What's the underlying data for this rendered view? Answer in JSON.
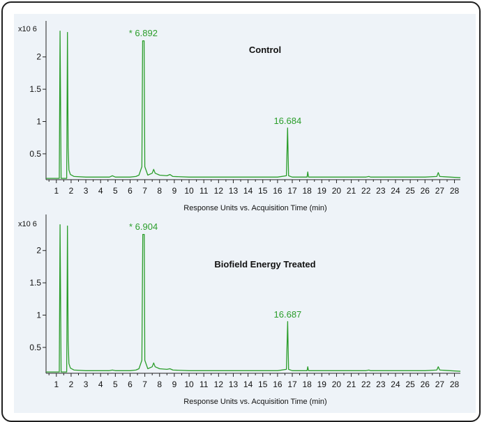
{
  "chart_data": [
    {
      "type": "line",
      "title": "Control",
      "xlabel": "Response Units vs. Acquisition Time (min)",
      "scale_label": "x10 6",
      "xlim": [
        0.3,
        28.4
      ],
      "ylim": [
        0.1,
        2.45
      ],
      "xticks": [
        "1",
        "2",
        "3",
        "4",
        "5",
        "6",
        "7",
        "8",
        "9",
        "10",
        "11",
        "12",
        "13",
        "14",
        "15",
        "16",
        "17",
        "18",
        "19",
        "20",
        "21",
        "22",
        "23",
        "24",
        "25",
        "26",
        "27",
        "28"
      ],
      "yticks": [
        {
          "value": 0.5,
          "label": "0.5"
        },
        {
          "value": 1,
          "label": "1"
        },
        {
          "value": 1.5,
          "label": "1.5"
        },
        {
          "value": 2,
          "label": "2"
        }
      ],
      "peak_annotations": [
        {
          "x": 6.892,
          "y": 2.28,
          "label": "* 6.892"
        },
        {
          "x": 16.684,
          "y": 0.92,
          "label": "16.684"
        }
      ],
      "series": [
        {
          "color": "#2a9d2a",
          "points": [
            [
              0.3,
              0.12
            ],
            [
              1.2,
              0.12
            ],
            [
              1.25,
              2.4
            ],
            [
              1.32,
              0.12
            ],
            [
              1.7,
              0.12
            ],
            [
              1.75,
              2.38
            ],
            [
              1.8,
              0.6
            ],
            [
              1.85,
              0.25
            ],
            [
              1.95,
              0.18
            ],
            [
              2.2,
              0.15
            ],
            [
              3.0,
              0.14
            ],
            [
              4.6,
              0.14
            ],
            [
              4.8,
              0.16
            ],
            [
              5.0,
              0.14
            ],
            [
              6.0,
              0.14
            ],
            [
              6.4,
              0.15
            ],
            [
              6.6,
              0.17
            ],
            [
              6.8,
              0.3
            ],
            [
              6.85,
              2.25
            ],
            [
              6.95,
              2.25
            ],
            [
              7.0,
              0.3
            ],
            [
              7.2,
              0.17
            ],
            [
              7.5,
              0.2
            ],
            [
              7.6,
              0.26
            ],
            [
              7.7,
              0.2
            ],
            [
              8.0,
              0.17
            ],
            [
              8.5,
              0.16
            ],
            [
              8.7,
              0.18
            ],
            [
              8.9,
              0.15
            ],
            [
              10.0,
              0.14
            ],
            [
              12.0,
              0.14
            ],
            [
              14.0,
              0.14
            ],
            [
              16.0,
              0.14
            ],
            [
              16.6,
              0.16
            ],
            [
              16.684,
              0.9
            ],
            [
              16.75,
              0.16
            ],
            [
              17.0,
              0.14
            ],
            [
              18.0,
              0.14
            ],
            [
              18.05,
              0.22
            ],
            [
              18.1,
              0.14
            ],
            [
              19.0,
              0.14
            ],
            [
              21.0,
              0.14
            ],
            [
              22.0,
              0.14
            ],
            [
              22.2,
              0.15
            ],
            [
              22.3,
              0.14
            ],
            [
              26.0,
              0.14
            ],
            [
              26.8,
              0.15
            ],
            [
              26.9,
              0.21
            ],
            [
              27.0,
              0.15
            ],
            [
              28.4,
              0.13
            ]
          ]
        }
      ]
    },
    {
      "type": "line",
      "title": "Biofield Energy Treated",
      "xlabel": "Response Units vs. Acquisition Time (min)",
      "scale_label": "x10 6",
      "xlim": [
        0.3,
        28.4
      ],
      "ylim": [
        0.1,
        2.45
      ],
      "xticks": [
        "1",
        "2",
        "3",
        "4",
        "5",
        "6",
        "7",
        "8",
        "9",
        "10",
        "11",
        "12",
        "13",
        "14",
        "15",
        "16",
        "17",
        "18",
        "19",
        "20",
        "21",
        "22",
        "23",
        "24",
        "25",
        "26",
        "27",
        "28"
      ],
      "yticks": [
        {
          "value": 0.5,
          "label": "0.5"
        },
        {
          "value": 1,
          "label": "1"
        },
        {
          "value": 1.5,
          "label": "1.5"
        },
        {
          "value": 2,
          "label": "2"
        }
      ],
      "peak_annotations": [
        {
          "x": 6.904,
          "y": 2.28,
          "label": "* 6.904"
        },
        {
          "x": 16.687,
          "y": 0.92,
          "label": "16.687"
        }
      ],
      "series": [
        {
          "color": "#2a9d2a",
          "points": [
            [
              0.3,
              0.12
            ],
            [
              1.2,
              0.12
            ],
            [
              1.25,
              2.4
            ],
            [
              1.32,
              0.12
            ],
            [
              1.7,
              0.12
            ],
            [
              1.75,
              2.38
            ],
            [
              1.8,
              0.6
            ],
            [
              1.85,
              0.25
            ],
            [
              1.95,
              0.18
            ],
            [
              2.2,
              0.15
            ],
            [
              3.0,
              0.14
            ],
            [
              4.6,
              0.14
            ],
            [
              4.8,
              0.15
            ],
            [
              5.0,
              0.14
            ],
            [
              6.0,
              0.14
            ],
            [
              6.4,
              0.15
            ],
            [
              6.6,
              0.17
            ],
            [
              6.8,
              0.3
            ],
            [
              6.86,
              2.25
            ],
            [
              6.96,
              2.25
            ],
            [
              7.0,
              0.3
            ],
            [
              7.2,
              0.17
            ],
            [
              7.5,
              0.2
            ],
            [
              7.6,
              0.26
            ],
            [
              7.7,
              0.2
            ],
            [
              8.0,
              0.17
            ],
            [
              8.5,
              0.16
            ],
            [
              8.7,
              0.17
            ],
            [
              8.9,
              0.15
            ],
            [
              10.0,
              0.14
            ],
            [
              12.0,
              0.14
            ],
            [
              14.0,
              0.14
            ],
            [
              16.0,
              0.14
            ],
            [
              16.6,
              0.16
            ],
            [
              16.687,
              0.9
            ],
            [
              16.75,
              0.16
            ],
            [
              17.0,
              0.14
            ],
            [
              18.0,
              0.14
            ],
            [
              18.05,
              0.2
            ],
            [
              18.1,
              0.14
            ],
            [
              19.0,
              0.14
            ],
            [
              21.0,
              0.14
            ],
            [
              22.0,
              0.14
            ],
            [
              22.2,
              0.15
            ],
            [
              22.3,
              0.14
            ],
            [
              26.0,
              0.14
            ],
            [
              26.8,
              0.15
            ],
            [
              26.9,
              0.2
            ],
            [
              27.0,
              0.15
            ],
            [
              28.4,
              0.13
            ]
          ]
        }
      ]
    }
  ]
}
